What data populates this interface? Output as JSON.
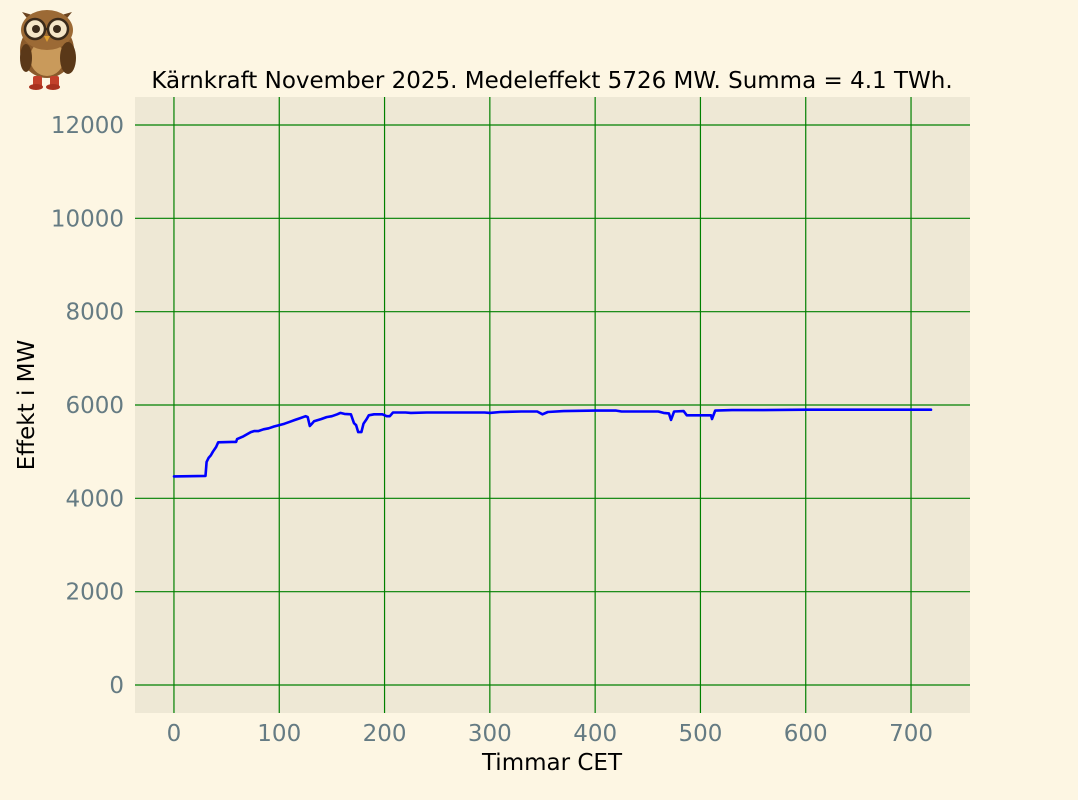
{
  "chart_data": {
    "type": "line",
    "title": "Kärnkraft November 2025. Medeleffekt 5726 MW. Summa = 4.1 TWh.",
    "xlabel": "Timmar CET",
    "ylabel": "Effekt i MW",
    "xlim": [
      -37,
      756
    ],
    "ylim": [
      -600,
      12600
    ],
    "x_ticks": [
      0,
      100,
      200,
      300,
      400,
      500,
      600,
      700
    ],
    "y_ticks": [
      0,
      2000,
      4000,
      6000,
      8000,
      10000,
      12000
    ],
    "grid": true,
    "series": [
      {
        "color": "#0000ff",
        "points": [
          [
            0,
            4470
          ],
          [
            30,
            4480
          ],
          [
            31,
            4780
          ],
          [
            33,
            4870
          ],
          [
            35,
            4920
          ],
          [
            37,
            5000
          ],
          [
            40,
            5100
          ],
          [
            42,
            5200
          ],
          [
            55,
            5210
          ],
          [
            59,
            5210
          ],
          [
            60,
            5270
          ],
          [
            63,
            5300
          ],
          [
            66,
            5330
          ],
          [
            70,
            5380
          ],
          [
            73,
            5420
          ],
          [
            76,
            5440
          ],
          [
            80,
            5440
          ],
          [
            85,
            5480
          ],
          [
            90,
            5500
          ],
          [
            95,
            5540
          ],
          [
            100,
            5570
          ],
          [
            105,
            5600
          ],
          [
            110,
            5640
          ],
          [
            115,
            5680
          ],
          [
            120,
            5720
          ],
          [
            125,
            5760
          ],
          [
            127,
            5740
          ],
          [
            129,
            5550
          ],
          [
            131,
            5600
          ],
          [
            133,
            5650
          ],
          [
            140,
            5700
          ],
          [
            145,
            5740
          ],
          [
            150,
            5760
          ],
          [
            155,
            5800
          ],
          [
            158,
            5830
          ],
          [
            162,
            5810
          ],
          [
            168,
            5800
          ],
          [
            171,
            5610
          ],
          [
            173,
            5570
          ],
          [
            175,
            5420
          ],
          [
            178,
            5420
          ],
          [
            180,
            5600
          ],
          [
            183,
            5700
          ],
          [
            185,
            5780
          ],
          [
            190,
            5800
          ],
          [
            198,
            5800
          ],
          [
            202,
            5760
          ],
          [
            205,
            5760
          ],
          [
            208,
            5840
          ],
          [
            220,
            5840
          ],
          [
            225,
            5830
          ],
          [
            240,
            5840
          ],
          [
            260,
            5840
          ],
          [
            280,
            5840
          ],
          [
            295,
            5840
          ],
          [
            300,
            5830
          ],
          [
            310,
            5850
          ],
          [
            330,
            5860
          ],
          [
            345,
            5860
          ],
          [
            350,
            5800
          ],
          [
            355,
            5850
          ],
          [
            370,
            5870
          ],
          [
            400,
            5880
          ],
          [
            420,
            5880
          ],
          [
            425,
            5860
          ],
          [
            440,
            5860
          ],
          [
            460,
            5860
          ],
          [
            465,
            5830
          ],
          [
            470,
            5820
          ],
          [
            472,
            5680
          ],
          [
            475,
            5860
          ],
          [
            484,
            5870
          ],
          [
            487,
            5780
          ],
          [
            500,
            5780
          ],
          [
            510,
            5780
          ],
          [
            511,
            5700
          ],
          [
            514,
            5880
          ],
          [
            530,
            5890
          ],
          [
            560,
            5890
          ],
          [
            600,
            5900
          ],
          [
            620,
            5900
          ],
          [
            640,
            5900
          ],
          [
            660,
            5900
          ],
          [
            680,
            5900
          ],
          [
            690,
            5900
          ],
          [
            700,
            5900
          ],
          [
            719,
            5900
          ]
        ]
      }
    ]
  },
  "logo": {
    "name": "owl-logo"
  },
  "colors": {
    "page_bg": "#fdf6e3",
    "plot_bg": "#eee8d5",
    "grid": "#008000",
    "tick_label": "#657b83",
    "line": "#0000ff"
  }
}
